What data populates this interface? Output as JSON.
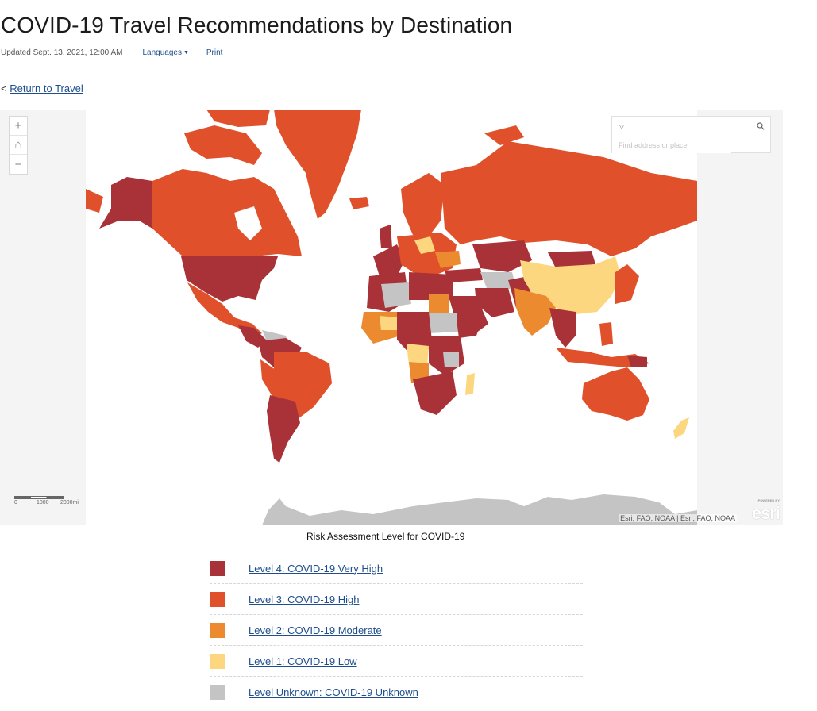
{
  "header": {
    "title": "COVID-19 Travel Recommendations by Destination",
    "updated": "Updated Sept. 13, 2021, 12:00 AM",
    "languages_label": "Languages",
    "print_label": "Print"
  },
  "nav": {
    "back_prefix": "<",
    "back_link": "Return to Travel"
  },
  "map": {
    "search_placeholder": "Find address or place",
    "zoom_in": "+",
    "home": "⌂",
    "zoom_out": "−",
    "scale_labels": [
      "0",
      "1000",
      "2000mi"
    ],
    "attribution": "Esri, FAO, NOAA | Esri, FAO, NOAA",
    "logo_text": "esri",
    "logo_caption": "POWERED BY"
  },
  "legend": {
    "title": "Risk Assessment Level for COVID-19",
    "items": [
      {
        "label": "Level 4: COVID-19 Very High",
        "color": "#a83237"
      },
      {
        "label": "Level 3: COVID-19 High",
        "color": "#e0502a"
      },
      {
        "label": "Level 2: COVID-19 Moderate",
        "color": "#ec8a2f"
      },
      {
        "label": "Level 1: COVID-19 Low",
        "color": "#fcd77f"
      },
      {
        "label": "Level Unknown: COVID-19 Unknown",
        "color": "#c4c4c4"
      }
    ]
  },
  "colors": {
    "ocean": "#ffffff",
    "map_side_panels": "#f4f4f4",
    "link": "#1f4e8c"
  }
}
